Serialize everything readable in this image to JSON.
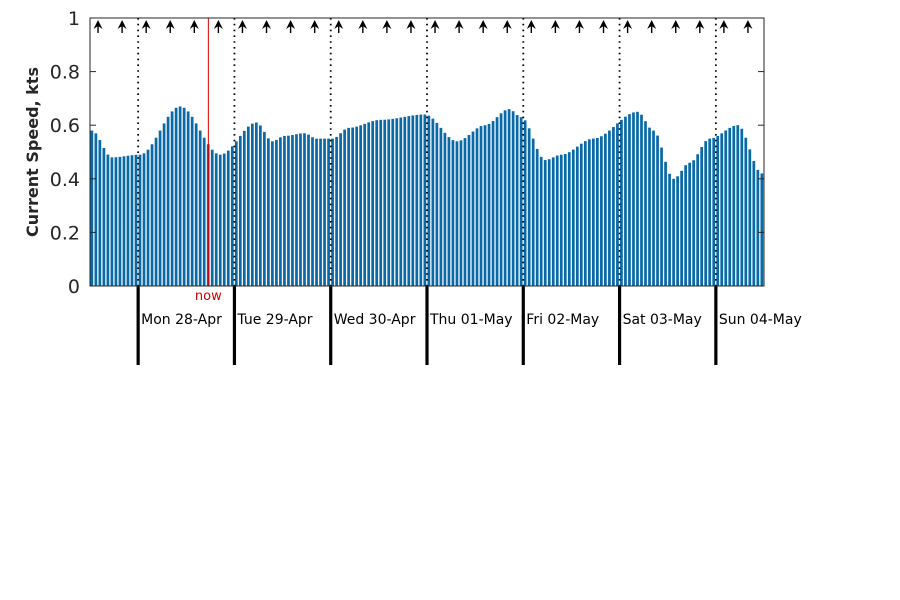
{
  "chart_data": {
    "type": "bar",
    "ylabel": "Current Speed, kts",
    "ylim": [
      0,
      1
    ],
    "yticks": [
      {
        "value": 0,
        "label": "0"
      },
      {
        "value": 0.2,
        "label": "0.2"
      },
      {
        "value": 0.4,
        "label": "0.4"
      },
      {
        "value": 0.6,
        "label": "0.6"
      },
      {
        "value": 0.8,
        "label": "0.8"
      },
      {
        "value": 1,
        "label": "1"
      }
    ],
    "x_range_hours": [
      -12,
      156
    ],
    "bar_interval_hours": 1,
    "grid": false,
    "days": [
      {
        "label": "Mon 28-Apr",
        "start_hour": 0
      },
      {
        "label": "Tue 29-Apr",
        "start_hour": 24
      },
      {
        "label": "Wed 30-Apr",
        "start_hour": 48
      },
      {
        "label": "Thu 01-May",
        "start_hour": 72
      },
      {
        "label": "Fri 02-May",
        "start_hour": 96
      },
      {
        "label": "Sat 03-May",
        "start_hour": 120
      },
      {
        "label": "Sun 04-May",
        "start_hour": 144
      }
    ],
    "now": {
      "label": "now",
      "hour": 17.5,
      "color": "#d40000"
    },
    "direction_arrow_interval_hours": 6,
    "direction_arrow_start_hour": -10,
    "bar_color": "#0a6aa8",
    "profile_points": [
      [
        -12,
        0.58
      ],
      [
        -7,
        0.48
      ],
      [
        0,
        0.49
      ],
      [
        10,
        0.67
      ],
      [
        20,
        0.49
      ],
      [
        29,
        0.61
      ],
      [
        33,
        0.54
      ],
      [
        36,
        0.56
      ],
      [
        41,
        0.57
      ],
      [
        44,
        0.55
      ],
      [
        48,
        0.55
      ],
      [
        52,
        0.59
      ],
      [
        60,
        0.62
      ],
      [
        71,
        0.64
      ],
      [
        79,
        0.54
      ],
      [
        86,
        0.6
      ],
      [
        92,
        0.66
      ],
      [
        95,
        0.63
      ],
      [
        101,
        0.47
      ],
      [
        105,
        0.49
      ],
      [
        113,
        0.55
      ],
      [
        124,
        0.65
      ],
      [
        128,
        0.58
      ],
      [
        133,
        0.4
      ],
      [
        137,
        0.46
      ],
      [
        142,
        0.55
      ],
      [
        149,
        0.6
      ],
      [
        155,
        0.42
      ]
    ]
  }
}
